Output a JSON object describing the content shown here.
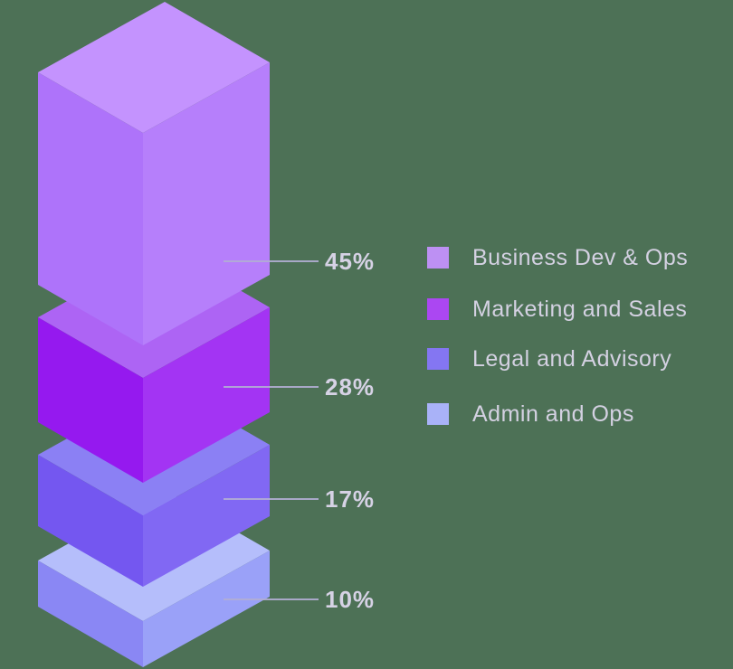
{
  "background_color": "#4d7156",
  "chart_data": {
    "type": "bar",
    "subtype": "isometric-3d-stacked-column",
    "title": "",
    "unit": "%",
    "legend_position": "right",
    "categories": [
      "Business Dev & Ops",
      "Marketing and Sales",
      "Legal and Advisory",
      "Admin and Ops"
    ],
    "values": [
      45,
      28,
      17,
      10
    ],
    "segments": [
      {
        "label": "Business Dev & Ops",
        "value": 45,
        "value_label": "45%",
        "color_top": "#c493fe",
        "color_left": "#ae73fa",
        "color_right": "#b67ffb",
        "color_swatch": "#bd90f3"
      },
      {
        "label": "Marketing and Sales",
        "value": 28,
        "value_label": "28%",
        "color_top": "#ad64f4",
        "color_left": "#9519ef",
        "color_right": "#a334f3",
        "color_swatch": "#ab47f2"
      },
      {
        "label": "Legal and Advisory",
        "value": 17,
        "value_label": "17%",
        "color_top": "#8b80f4",
        "color_left": "#7457f0",
        "color_right": "#8168f3",
        "color_swatch": "#8476f2"
      },
      {
        "label": "Admin and Ops",
        "value": 10,
        "value_label": "10%",
        "color_top": "#b5befb",
        "color_left": "#8a87f4",
        "color_right": "#9aa1f8",
        "color_swatch": "#a9b2f8"
      }
    ],
    "leader_line_color": "#b2aed4",
    "value_label_color": "#d6d2e5",
    "legend_text_color": "#d4d1e2"
  }
}
